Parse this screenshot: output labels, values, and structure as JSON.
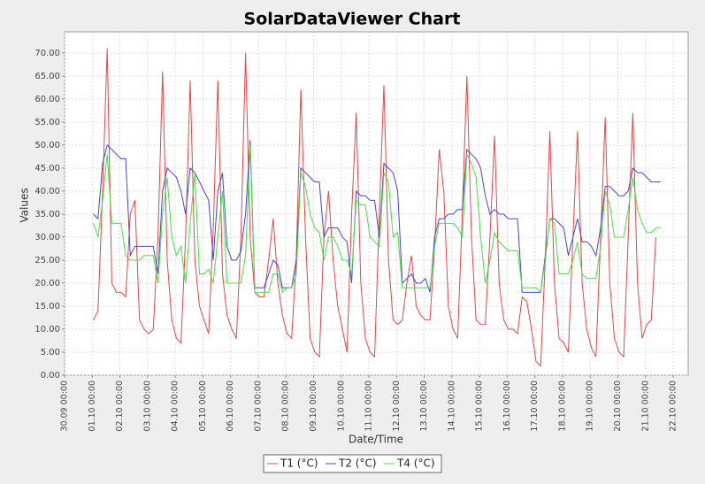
{
  "chart_data": {
    "type": "line",
    "title": "SolarDataViewer Chart",
    "x_label": "Date/Time",
    "y_label": "Values",
    "x": [
      "01.10 01:00",
      "01.10 05:00",
      "01.10 09:00",
      "01.10 13:00",
      "01.10 17:00",
      "01.10 21:00",
      "02.10 01:00",
      "02.10 05:00",
      "02.10 09:00",
      "02.10 13:00",
      "02.10 17:00",
      "02.10 21:00",
      "03.10 01:00",
      "03.10 05:00",
      "03.10 09:00",
      "03.10 13:00",
      "03.10 17:00",
      "03.10 21:00",
      "04.10 01:00",
      "04.10 05:00",
      "04.10 09:00",
      "04.10 13:00",
      "04.10 17:00",
      "04.10 21:00",
      "05.10 01:00",
      "05.10 05:00",
      "05.10 09:00",
      "05.10 13:00",
      "05.10 17:00",
      "05.10 21:00",
      "06.10 01:00",
      "06.10 05:00",
      "06.10 09:00",
      "06.10 13:00",
      "06.10 17:00",
      "06.10 21:00",
      "07.10 01:00",
      "07.10 05:00",
      "07.10 09:00",
      "07.10 13:00",
      "07.10 17:00",
      "07.10 21:00",
      "08.10 01:00",
      "08.10 05:00",
      "08.10 09:00",
      "08.10 13:00",
      "08.10 17:00",
      "08.10 21:00",
      "09.10 01:00",
      "09.10 05:00",
      "09.10 09:00",
      "09.10 13:00",
      "09.10 17:00",
      "09.10 21:00",
      "10.10 01:00",
      "10.10 05:00",
      "10.10 09:00",
      "10.10 13:00",
      "10.10 17:00",
      "10.10 21:00",
      "11.10 01:00",
      "11.10 05:00",
      "11.10 09:00",
      "11.10 13:00",
      "11.10 17:00",
      "11.10 21:00",
      "12.10 01:00",
      "12.10 05:00",
      "12.10 09:00",
      "12.10 13:00",
      "12.10 17:00",
      "12.10 21:00",
      "13.10 01:00",
      "13.10 05:00",
      "13.10 09:00",
      "13.10 13:00",
      "13.10 17:00",
      "13.10 21:00",
      "14.10 01:00",
      "14.10 05:00",
      "14.10 09:00",
      "14.10 13:00",
      "14.10 17:00",
      "14.10 21:00",
      "15.10 01:00",
      "15.10 05:00",
      "15.10 09:00",
      "15.10 13:00",
      "15.10 17:00",
      "15.10 21:00",
      "16.10 01:00",
      "16.10 05:00",
      "16.10 09:00",
      "16.10 13:00",
      "16.10 17:00",
      "16.10 21:00",
      "17.10 01:00",
      "17.10 05:00",
      "17.10 09:00",
      "17.10 13:00",
      "17.10 17:00",
      "17.10 21:00",
      "18.10 01:00",
      "18.10 05:00",
      "18.10 09:00",
      "18.10 13:00",
      "18.10 17:00",
      "18.10 21:00",
      "19.10 01:00",
      "19.10 05:00",
      "19.10 09:00",
      "19.10 13:00",
      "19.10 17:00",
      "19.10 21:00",
      "20.10 01:00",
      "20.10 05:00",
      "20.10 09:00",
      "20.10 13:00",
      "20.10 17:00",
      "20.10 21:00",
      "21.10 01:00",
      "21.10 05:00",
      "21.10 09:00",
      "21.10 13:00"
    ],
    "series": [
      {
        "name": "T1 (°C)",
        "color": "#e84545",
        "values": [
          12,
          14,
          40,
          71,
          20,
          18,
          18,
          17,
          35,
          38,
          12,
          10,
          9,
          10,
          30,
          66,
          25,
          12,
          8,
          7,
          30,
          64,
          25,
          15,
          12,
          9,
          32,
          64,
          22,
          13,
          10,
          8,
          30,
          70,
          30,
          18,
          17,
          17,
          25,
          34,
          20,
          13,
          9,
          8,
          25,
          62,
          30,
          8,
          5,
          4,
          30,
          40,
          25,
          15,
          10,
          5,
          35,
          57,
          20,
          8,
          5,
          4,
          35,
          63,
          25,
          12,
          11,
          12,
          20,
          26,
          15,
          13,
          12,
          12,
          28,
          49,
          40,
          15,
          10,
          8,
          35,
          65,
          30,
          12,
          11,
          11,
          30,
          52,
          20,
          12,
          10,
          10,
          9,
          17,
          16,
          10,
          3,
          2,
          25,
          53,
          20,
          8,
          7,
          5,
          30,
          53,
          20,
          10,
          6,
          4,
          30,
          56,
          20,
          8,
          5,
          4,
          30,
          57,
          20,
          8,
          11,
          12,
          30,
          null
        ]
      },
      {
        "name": "T2 (°C)",
        "color": "#4545d0",
        "values": [
          35,
          34,
          46,
          50,
          49,
          48,
          47,
          47,
          26,
          28,
          28,
          28,
          28,
          28,
          22,
          40,
          45,
          44,
          43,
          40,
          35,
          45,
          44,
          42,
          40,
          38,
          25,
          40,
          44,
          28,
          25,
          25,
          27,
          35,
          51,
          19,
          19,
          19,
          22,
          25,
          24,
          19,
          19,
          19,
          25,
          45,
          44,
          43,
          42,
          42,
          30,
          32,
          32,
          32,
          30,
          29,
          20,
          40,
          39,
          39,
          38,
          38,
          30,
          46,
          45,
          44,
          40,
          20,
          21,
          22,
          20,
          20,
          21,
          18,
          30,
          34,
          34,
          35,
          35,
          36,
          36,
          49,
          48,
          47,
          45,
          39,
          35,
          36,
          35,
          35,
          34,
          34,
          34,
          18,
          18,
          18,
          18,
          18,
          26,
          34,
          34,
          33,
          32,
          26,
          30,
          34,
          29,
          29,
          28,
          26,
          32,
          41,
          41,
          40,
          39,
          39,
          40,
          45,
          44,
          44,
          43,
          42,
          42,
          42
        ]
      },
      {
        "name": "T4 (°C)",
        "color": "#45e045",
        "values": [
          33,
          30,
          38,
          48,
          33,
          33,
          33,
          26,
          25,
          25,
          25,
          26,
          26,
          26,
          20,
          35,
          43,
          30,
          26,
          28,
          20,
          33,
          44,
          22,
          22,
          23,
          20,
          30,
          40,
          20,
          20,
          20,
          20,
          26,
          50,
          18,
          18,
          18,
          18,
          22,
          22,
          18,
          19,
          19,
          22,
          44,
          41,
          35,
          32,
          31,
          25,
          30,
          30,
          28,
          25,
          25,
          22,
          38,
          37,
          37,
          30,
          29,
          28,
          44,
          42,
          30,
          31,
          19,
          19,
          19,
          19,
          19,
          19,
          19,
          28,
          33,
          33,
          33,
          33,
          32,
          30,
          48,
          46,
          43,
          30,
          20,
          25,
          31,
          29,
          28,
          27,
          27,
          27,
          19,
          19,
          19,
          19,
          18,
          25,
          34,
          33,
          22,
          22,
          22,
          25,
          29,
          22,
          21,
          21,
          21,
          28,
          40,
          37,
          30,
          30,
          30,
          36,
          43,
          36,
          33,
          31,
          31,
          32,
          32
        ]
      }
    ],
    "xlim": [
      "30.09 00:00",
      "22.10 13:00"
    ],
    "xticks": [
      "30.09 00:00",
      "01.10 00:00",
      "02.10 00:00",
      "03.10 00:00",
      "04.10 00:00",
      "05.10 00:00",
      "06.10 00:00",
      "07.10 00:00",
      "08.10 00:00",
      "09.10 00:00",
      "10.10 00:00",
      "11.10 00:00",
      "12.10 00:00",
      "13.10 00:00",
      "14.10 00:00",
      "15.10 00:00",
      "16.10 00:00",
      "17.10 00:00",
      "18.10 00:00",
      "19.10 00:00",
      "20.10 00:00",
      "21.10 00:00",
      "22.10 00:00"
    ],
    "ylim": [
      0,
      74.6
    ],
    "yticks": [
      {
        "value": 0,
        "label": "0.00"
      },
      {
        "value": 5,
        "label": "5.00"
      },
      {
        "value": 10,
        "label": "10.00"
      },
      {
        "value": 15,
        "label": "15.00"
      },
      {
        "value": 20,
        "label": "20.00"
      },
      {
        "value": 25,
        "label": "25.00"
      },
      {
        "value": 30,
        "label": "30.00"
      },
      {
        "value": 35,
        "label": "35.00"
      },
      {
        "value": 40,
        "label": "40.00"
      },
      {
        "value": 45,
        "label": "45.00"
      },
      {
        "value": 50,
        "label": "50.00"
      },
      {
        "value": 55,
        "label": "55.00"
      },
      {
        "value": 60,
        "label": "60.00"
      },
      {
        "value": 65,
        "label": "65.00"
      },
      {
        "value": 70,
        "label": "70.00"
      }
    ],
    "grid": true,
    "legend": "bottom"
  }
}
